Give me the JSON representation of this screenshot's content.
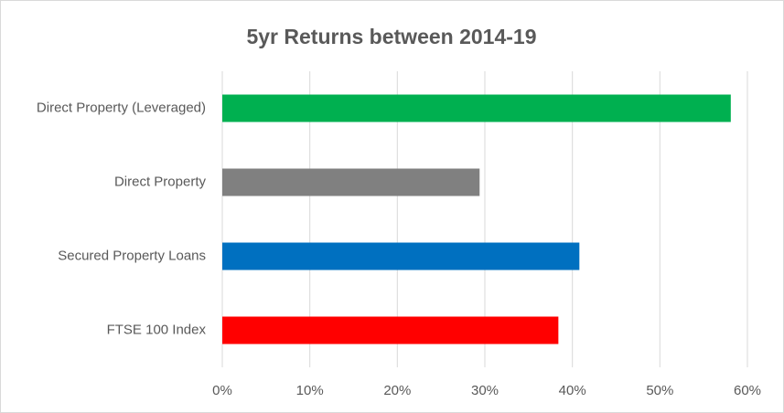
{
  "chart_data": {
    "type": "hbar",
    "title": "5yr Returns between 2014-19",
    "categories": [
      "Direct Property (Leveraged)",
      "Direct Property",
      "Secured Property Loans",
      "FTSE 100 Index"
    ],
    "values": [
      58.1,
      29.4,
      40.8,
      38.4
    ],
    "colors": [
      "#00b050",
      "#808080",
      "#0070c0",
      "#ff0000"
    ],
    "xlim": [
      0,
      60
    ],
    "xticks": [
      {
        "value": 0,
        "label": "0%"
      },
      {
        "value": 10,
        "label": "10%"
      },
      {
        "value": 20,
        "label": "20%"
      },
      {
        "value": 30,
        "label": "30%"
      },
      {
        "value": 40,
        "label": "40%"
      },
      {
        "value": 50,
        "label": "50%"
      },
      {
        "value": 60,
        "label": "60%"
      }
    ],
    "grid": true
  }
}
